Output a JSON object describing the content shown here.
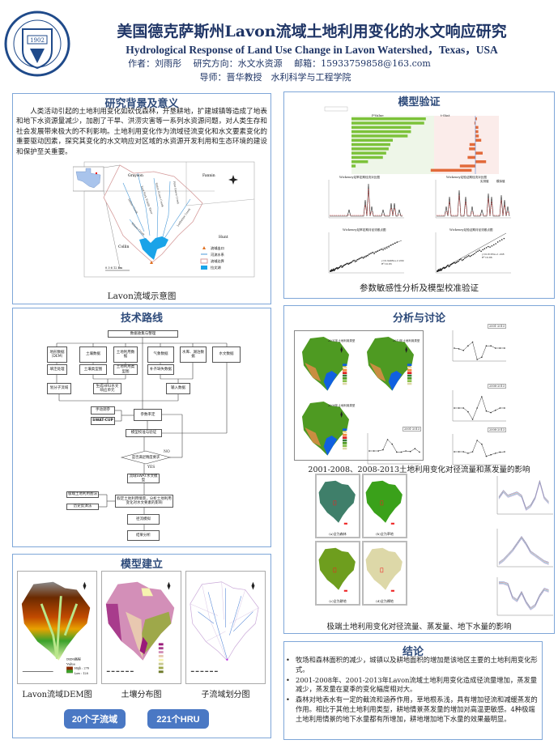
{
  "header": {
    "logo_text": "TAIYUAN UNIVERSITY OF TECHNOLOGY",
    "logo_year": "1902",
    "logo_chinese": "太原理工大学",
    "title_cn": "美国德克萨斯州Lavon流域土地利用变化的水文响应研究",
    "title_en": "Hydrological Response of Land Use Change in Lavon Watershed，Texas，USA",
    "author_line": "作者：刘雨彤　 研究方向：水文水资源　 邮箱：15933759858@163.com",
    "advisor_line": "导师：晋华教授　水利科学与工程学院"
  },
  "background": {
    "title": "研究背景及意义",
    "text": "人类活动引起的土地利用变化如砍伐森林，开垦耕地，扩建城镇等造成了地表和地下水资源量减少，加剧了干旱、洪涝灾害等一系列水资源问题，对人类生存和社会发展带来极大的不利影响。土地利用变化作为流域径流变化和水文要素变化的重要驱动因素，探究其变化的水文响应对区域的水资源开发利用和生态环境的建设和保护至关重要。",
    "map": {
      "counties": [
        "Grayson",
        "Fannin",
        "Collin",
        "Hunt"
      ],
      "rivers": [
        "East Fork Trinity River",
        "Sister Grove Creek",
        "Pilot Grove Creek",
        "Indian Creek",
        "Wilson Creek",
        "Ledbetter Creek"
      ],
      "legend": [
        "流域出口",
        "河流水系",
        "流域边界",
        "拉文湖"
      ],
      "scale": "0  3  6      12 km"
    },
    "caption": "Lavon流域示意图"
  },
  "tech": {
    "title": "技术路线",
    "boxes": {
      "collect": "数据收集与整理",
      "dem": "地形数据（DEM）",
      "soil": "土壤数据",
      "landuse": "土地利用数据",
      "meteo": "气象数据",
      "reservoir": "水库、湖泊数据",
      "hydro": "水文数据",
      "fill": "填洼处理",
      "soiltype": "土壤类型图",
      "lutype": "土地利用类型图",
      "missing": "补齐缺失数据",
      "subbasin": "划分子流域",
      "hru": "生成HRU水文响应单元",
      "input": "输入数据",
      "manual": "手动调参",
      "swatcup": "SWAT-CUP",
      "calib": "参数率定",
      "valid": "模型校准与验证",
      "decision": "是否满足精度要求",
      "no": "NO",
      "yes": "YES",
      "swat": "流域SWAT水文模型",
      "extreme": "极端土地利用图法",
      "history": "历史反演法",
      "scenario": "假定土地利用情景，分析土地利用变化对水文要素的影响",
      "runoff": "径流模拟",
      "result": "结果分析"
    }
  },
  "model": {
    "title": "模型建立",
    "dem_legend": {
      "title": "DEM高程",
      "value": "Value",
      "high": "High : 276",
      "low": "Low : 128"
    },
    "captions": [
      "Lavon流域DEM图",
      "土壤分布图",
      "子流域划分图"
    ],
    "buttons": [
      "20个子流域",
      "221个HRU"
    ]
  },
  "verify": {
    "title": "模型验证",
    "chart_titles": [
      "Wickeney站率定期径流对比图",
      "Wickeney站验证期径流对比图",
      "Wickeney站率定期月径流散点图",
      "Wickeney站验证期月径流散点图"
    ],
    "bar_headers": [
      "P-Value",
      "t-Stat"
    ],
    "legend": [
      "实测值",
      "模拟值"
    ],
    "fit1": "y=0.9496x+2.209  R²=0.83",
    "fit2": "y=0.8183x+1.208  R²=0.86",
    "caption": "参数敏感性分析及模型校准验证"
  },
  "analysis": {
    "title": "分析与讨论",
    "map_titles": [
      "2001年土地利用类型",
      "2013年土地利用类型",
      "2008年土地利用类型"
    ],
    "series_labels": [
      "2001-2013",
      "2008-2013",
      "2001-2013",
      "2008-2013"
    ],
    "caption1": "2001-2008、2008-2013土地利用变化对径流量和蒸发量的影响",
    "extreme_titles": [
      "(a)全为森林",
      "(b)全为草地",
      "(c)全为耕地",
      "(d)全为裸地"
    ],
    "extreme_colors": [
      "#3f7f6a",
      "#3aa11a",
      "#6e9e1e",
      "#ddd8a8"
    ],
    "caption2": "极端土地利用变化对径流量、蒸发量、地下水量的影响"
  },
  "conclusion": {
    "title": "结论",
    "items": [
      "牧场和森林面积的减少，城镇以及耕地面积的增加是该地区主要的土地利用变化形式。",
      "2001-2008年、2001-2013年Lavon流域土地利用变化造成径流量增加，蒸发量减少，蒸发量在夏季的变化幅度相对大。",
      "森林对地表水有一定的截流和涵养作用，草地根系浅，具有增加径流和减缓蒸发的作用。相比于其他土地利用类型，耕地情景蒸发量的增加对高温更敏感。4种极端土地利用情景的地下水量都有所增加，耕地增加地下水量的效果最明显。"
    ]
  },
  "colors": {
    "panel_border": "#7ea6d8",
    "title": "#2d4a7a",
    "button": "#4a78c4",
    "lake": "#1aa3e8"
  }
}
